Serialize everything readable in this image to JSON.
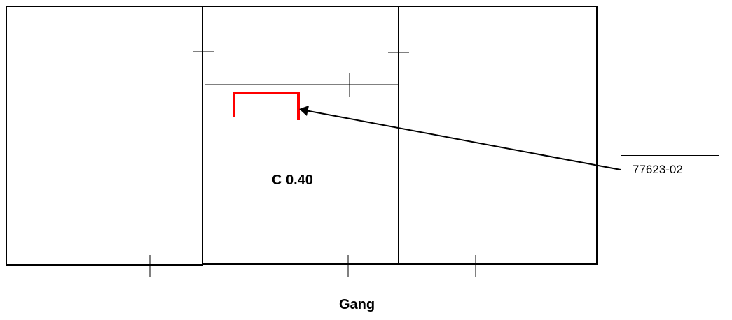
{
  "room": {
    "label": "C 0.40"
  },
  "corridor": {
    "label": "Gang"
  },
  "callout": {
    "text": "77623-02"
  },
  "colors": {
    "lines": "#000000",
    "marker": "#ff0000"
  },
  "icons": {
    "marker": "red-bracket-marker",
    "arrow": "leader-arrow"
  }
}
